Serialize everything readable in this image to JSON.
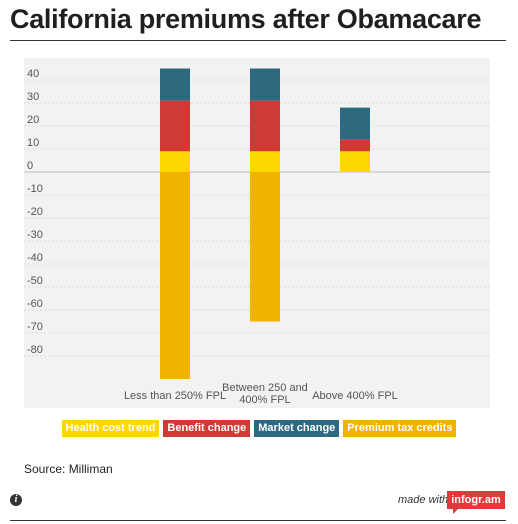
{
  "chart_data": {
    "type": "bar",
    "stacked": true,
    "title": "California premiums after Obamacare",
    "categories": [
      "Less than 250% FPL",
      "Between 250 and 400% FPL",
      "Above 400% FPL"
    ],
    "category_lines": [
      [
        "Less than 250% FPL"
      ],
      [
        "Between 250 and",
        "400% FPL"
      ],
      [
        "Above 400% FPL"
      ]
    ],
    "series": [
      {
        "name": "Health cost trend",
        "color": "#ffd700",
        "values": [
          9,
          9,
          9
        ]
      },
      {
        "name": "Benefit change",
        "color": "#cf3a35",
        "values": [
          22,
          22,
          5
        ]
      },
      {
        "name": "Market change",
        "color": "#2d6a7f",
        "values": [
          14,
          14,
          14
        ]
      },
      {
        "name": "Premium tax credits",
        "color": "#f2b200",
        "values": [
          -90,
          -65,
          0
        ]
      }
    ],
    "ylim": [
      -90,
      45
    ],
    "yticks": [
      40,
      30,
      20,
      10,
      0,
      -10,
      -20,
      -30,
      -40,
      -50,
      -60,
      -70,
      -80
    ],
    "ytick_labels": [
      "40",
      "30",
      "20",
      "10",
      "0",
      "-10",
      "-20",
      "-30",
      "-40",
      "-50",
      "-60",
      "-70",
      "-80"
    ],
    "grid": true,
    "legend_position": "bottom"
  },
  "source": "Source: Milliman",
  "footer": {
    "info_glyph": "i",
    "made_with": "made with",
    "brand": "infogr.am"
  }
}
